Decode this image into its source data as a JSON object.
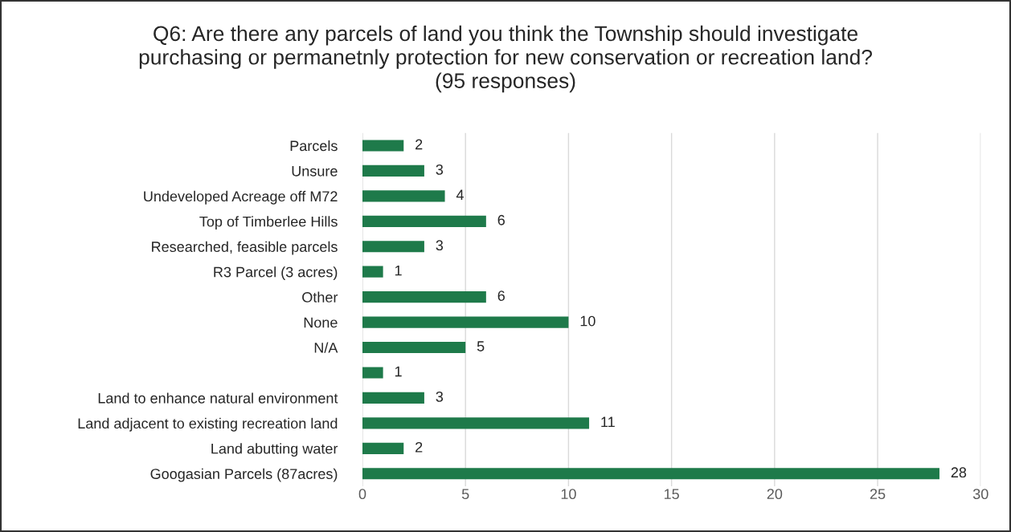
{
  "chart_data": {
    "type": "bar",
    "orientation": "horizontal",
    "title": "Q6: Are there any parcels of land you think the Township should investigate\npurchasing or permanetnly protection for new conservation or recreation land?\n(95 responses)",
    "categories": [
      "Parcels",
      "Unsure",
      "Undeveloped Acreage off M72",
      "Top of Timberlee Hills",
      "Researched, feasible parcels",
      "R3 Parcel (3 acres)",
      "Other",
      "None",
      "N/A",
      null,
      "Land to enhance natural environment",
      "Land adjacent to existing recreation land",
      "Land abutting water",
      "Googasian Parcels (87acres)"
    ],
    "values": [
      2,
      3,
      4,
      6,
      3,
      1,
      6,
      10,
      5,
      1,
      3,
      11,
      2,
      28
    ],
    "color": "#1e7a4a",
    "xlim": [
      0,
      30
    ],
    "xticks": [
      0,
      5,
      10,
      15,
      20,
      25,
      30
    ],
    "grid": "x",
    "data_labels": true,
    "legend": false
  }
}
